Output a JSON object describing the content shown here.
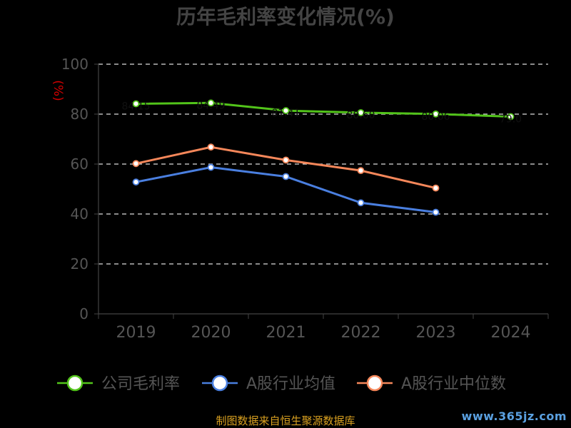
{
  "chart_data": {
    "type": "line",
    "title": "历年毛利率变化情况(%)",
    "unit_label": "(%)",
    "categories": [
      "2019",
      "2020",
      "2021",
      "2022",
      "2023",
      "2024"
    ],
    "ylim": [
      0,
      100
    ],
    "yticks": [
      0,
      20,
      40,
      60,
      80,
      100
    ],
    "grid": true,
    "legend": "bottom",
    "series": [
      {
        "name": "公司毛利率",
        "color": "#52c41a",
        "values": [
          84.15,
          84.49,
          81.41,
          80.6,
          80.06,
          79.0
        ],
        "labels": [
          "84.15",
          "84.49",
          "81.41",
          "80.60",
          "80.06",
          "79.0"
        ]
      },
      {
        "name": "A股行业均值",
        "color": "#4a7fe0",
        "values": [
          52.8,
          58.7,
          55.0,
          44.5,
          40.7,
          null
        ]
      },
      {
        "name": "A股行业中位数",
        "color": "#f5875a",
        "values": [
          60.2,
          66.8,
          61.6,
          57.4,
          50.4,
          null
        ]
      }
    ]
  },
  "footer": {
    "source": "制图数据来自恒生聚源数据库",
    "watermark": "www.365jz.com"
  }
}
